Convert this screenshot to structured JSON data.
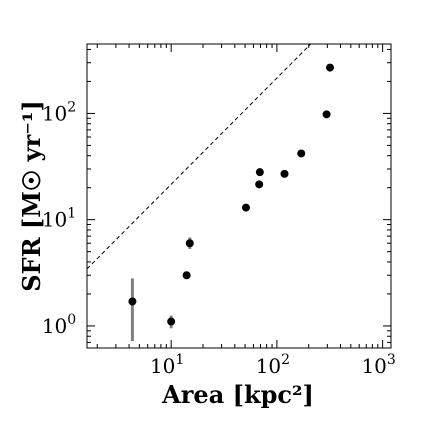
{
  "chart_data": {
    "type": "scatter",
    "title": "",
    "xlabel": "Area [kpc²]",
    "ylabel": "SFR [M☉ yr⁻¹]",
    "xscale": "log",
    "yscale": "log",
    "xlim": [
      1.6,
      1200
    ],
    "ylim": [
      0.62,
      450
    ],
    "x_ticks": [
      {
        "value": 10,
        "base": "10",
        "exp": "1"
      },
      {
        "value": 100,
        "base": "10",
        "exp": "2"
      },
      {
        "value": 1000,
        "base": "10",
        "exp": "3"
      }
    ],
    "y_ticks": [
      {
        "value": 1,
        "base": "10",
        "exp": "0"
      },
      {
        "value": 10,
        "base": "10",
        "exp": "1"
      },
      {
        "value": 100,
        "base": "10",
        "exp": "2"
      }
    ],
    "series": [
      {
        "points": [
          {
            "x": 4.3,
            "y": 1.7,
            "yerr_low": 0.72,
            "yerr_high": 2.8
          },
          {
            "x": 10,
            "y": 1.1,
            "yerr_low": 0.95,
            "yerr_high": 1.25
          },
          {
            "x": 14,
            "y": 3.0,
            "yerr_low": 2.85,
            "yerr_high": 3.15
          },
          {
            "x": 15,
            "y": 6.0,
            "yerr_low": 5.3,
            "yerr_high": 6.8
          },
          {
            "x": 51,
            "y": 13,
            "yerr_low": 12.5,
            "yerr_high": 13.5
          },
          {
            "x": 68,
            "y": 21.5,
            "yerr_low": 21,
            "yerr_high": 22
          },
          {
            "x": 69,
            "y": 28,
            "yerr_low": 27.5,
            "yerr_high": 28.5
          },
          {
            "x": 118,
            "y": 27,
            "yerr_low": 26.5,
            "yerr_high": 27.5
          },
          {
            "x": 170,
            "y": 42,
            "yerr_low": 41,
            "yerr_high": 43
          },
          {
            "x": 295,
            "y": 98,
            "yerr_low": 96,
            "yerr_high": 100
          },
          {
            "x": 318,
            "y": 270,
            "yerr_low": 265,
            "yerr_high": 275
          }
        ]
      }
    ],
    "reference_line": {
      "style": "dashed",
      "slope": 1.0,
      "intercept": 0.333
    },
    "grid": false,
    "legend": "none"
  }
}
